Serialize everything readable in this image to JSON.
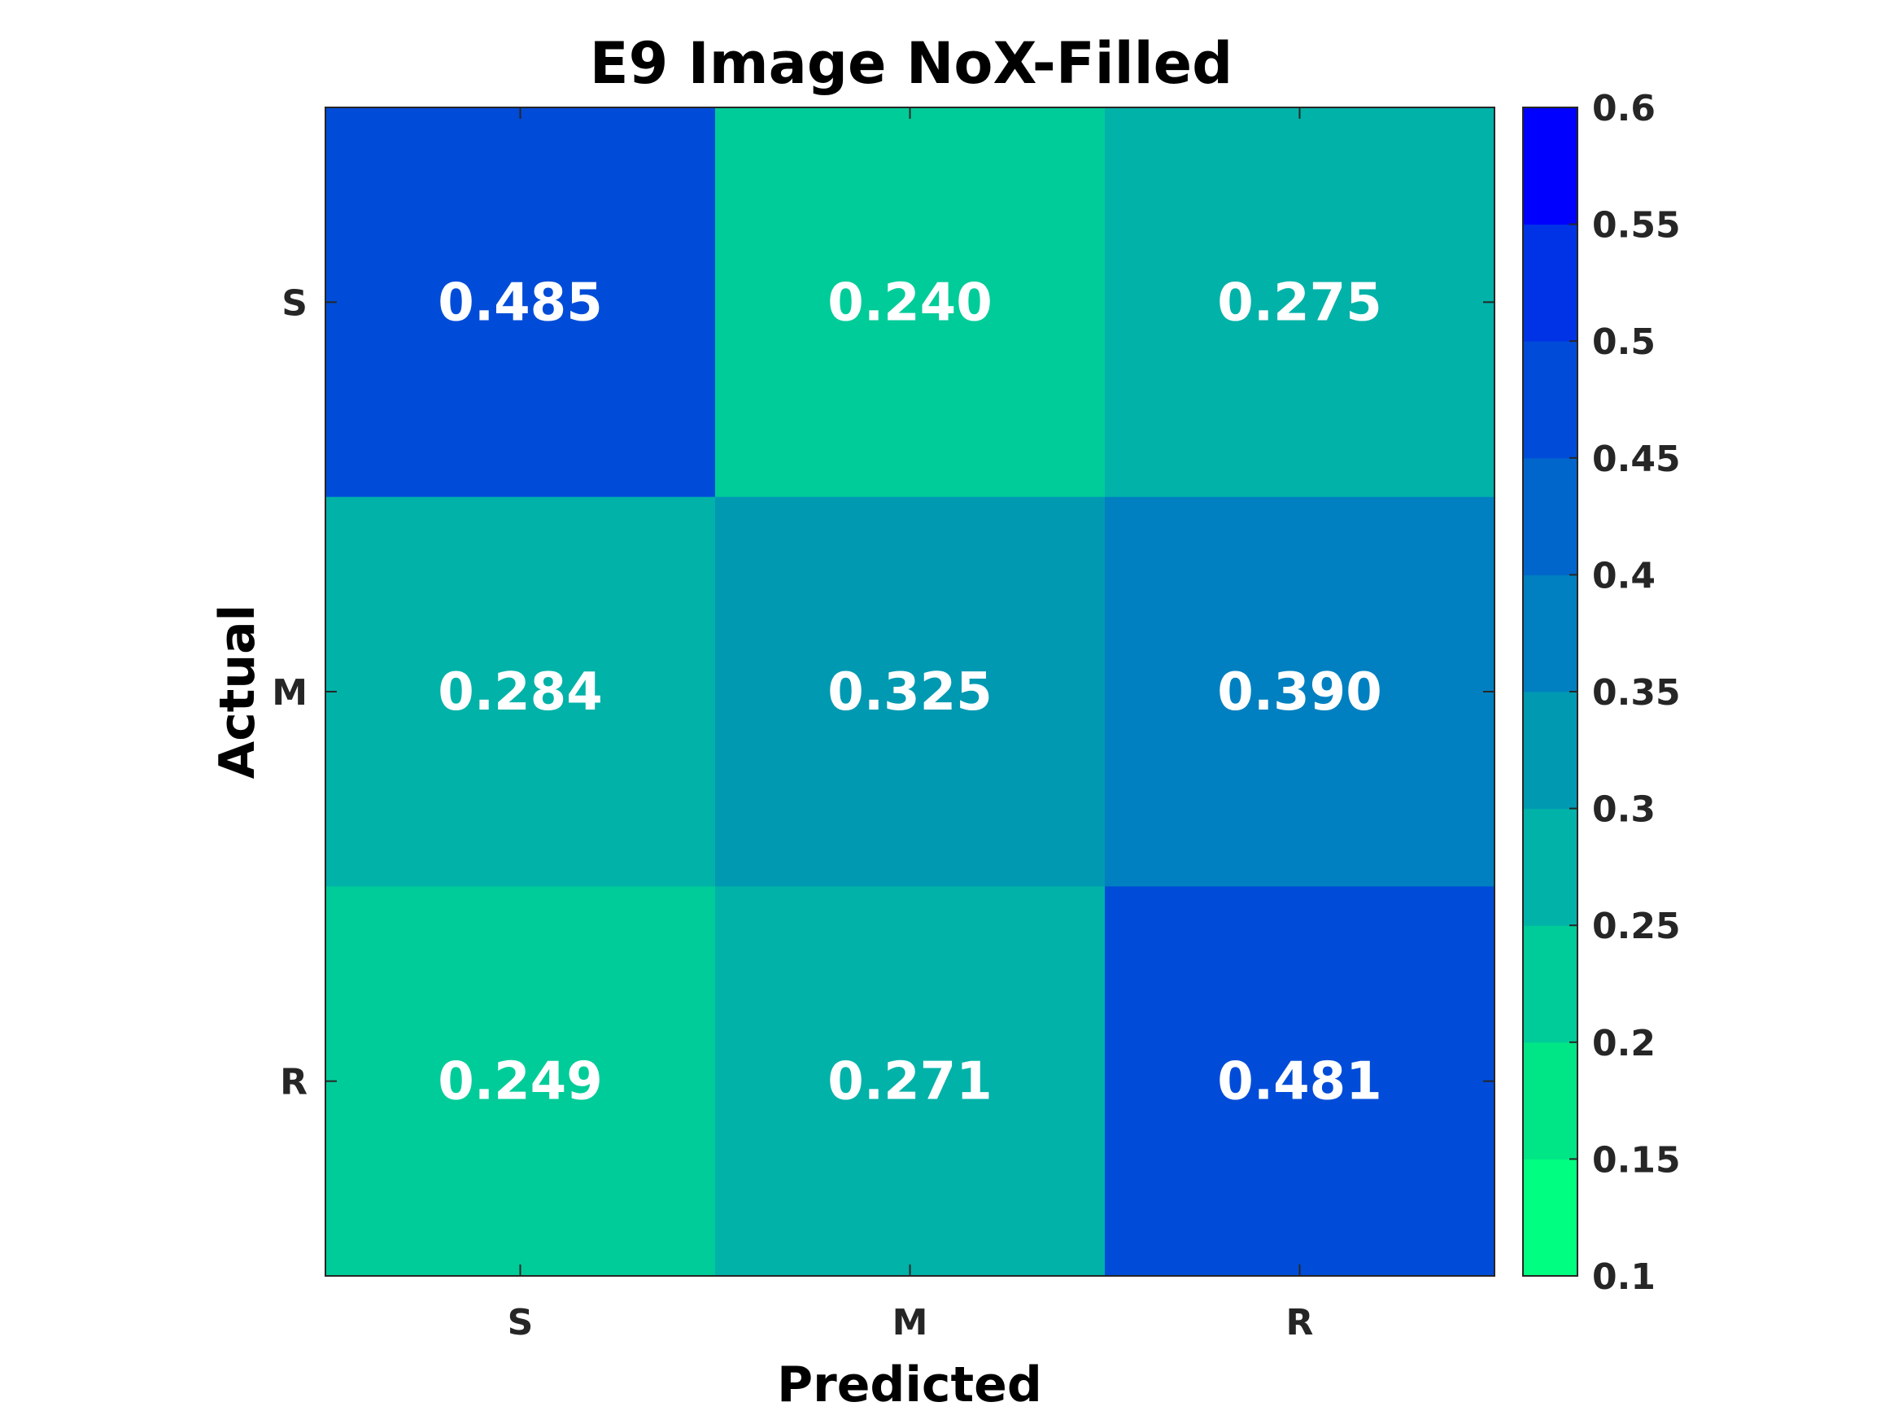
{
  "chart_data": {
    "type": "heatmap",
    "title": "E9 Image NoX-Filled",
    "xlabel": "Predicted",
    "ylabel": "Actual",
    "x_categories": [
      "S",
      "M",
      "R"
    ],
    "y_categories": [
      "S",
      "M",
      "R"
    ],
    "values": [
      [
        0.485,
        0.24,
        0.275
      ],
      [
        0.284,
        0.325,
        0.39
      ],
      [
        0.249,
        0.271,
        0.481
      ]
    ],
    "value_labels": [
      [
        "0.485",
        "0.240",
        "0.275"
      ],
      [
        "0.284",
        "0.325",
        "0.390"
      ],
      [
        "0.249",
        "0.271",
        "0.481"
      ]
    ],
    "colorbar": {
      "range": [
        0.1,
        0.6
      ],
      "ticks": [
        "0.1",
        "0.15",
        "0.2",
        "0.25",
        "0.3",
        "0.35",
        "0.4",
        "0.45",
        "0.5",
        "0.55",
        "0.6"
      ],
      "bins": 10,
      "colors": [
        "#00ff80",
        "#00e585",
        "#00cc99",
        "#00b2a8",
        "#0099b2",
        "#0080c0",
        "#0066cc",
        "#004cd8",
        "#0033e5",
        "#0000ff"
      ]
    },
    "grid": false
  }
}
